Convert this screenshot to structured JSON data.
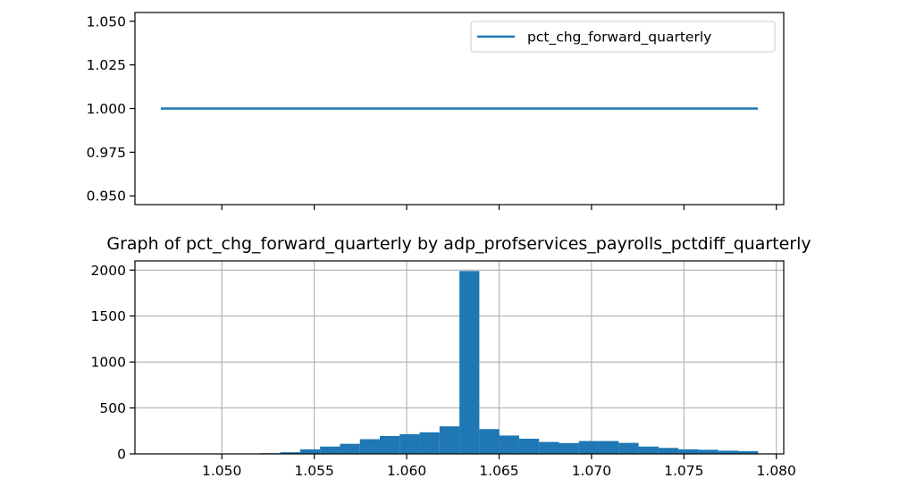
{
  "chart_data": [
    {
      "type": "line",
      "title": "",
      "xlabel": "",
      "ylabel": "",
      "x": [
        1.0467,
        1.079
      ],
      "series": [
        {
          "name": "pct_chg_forward_quarterly",
          "values": [
            1.0,
            1.0
          ]
        }
      ],
      "xlim": [
        1.0453,
        1.0804
      ],
      "ylim": [
        0.945,
        1.055
      ],
      "yticks": [
        0.95,
        0.975,
        1.0,
        1.025,
        1.05
      ],
      "ytick_labels": [
        "0.950",
        "0.975",
        "1.000",
        "1.025",
        "1.050"
      ],
      "xticks": [
        1.05,
        1.055,
        1.06,
        1.065,
        1.07,
        1.075,
        1.08
      ],
      "show_xtick_labels": false,
      "grid": false,
      "legend": "top-right",
      "color": "#1f77b4"
    },
    {
      "type": "bar",
      "title": "Graph of pct_chg_forward_quarterly by adp_profservices_payrolls_pctdiff_quarterly",
      "xlabel": "",
      "ylabel": "",
      "bin_start": 1.0467,
      "bin_width": 0.001077,
      "values": [
        2,
        1,
        2,
        3,
        5,
        8,
        18,
        50,
        80,
        110,
        160,
        195,
        215,
        235,
        300,
        1990,
        270,
        200,
        165,
        130,
        118,
        140,
        140,
        120,
        80,
        65,
        50,
        45,
        35,
        30
      ],
      "xlim": [
        1.0453,
        1.0804
      ],
      "ylim": [
        0,
        2100
      ],
      "xticks": [
        1.05,
        1.055,
        1.06,
        1.065,
        1.07,
        1.075,
        1.08
      ],
      "xtick_labels": [
        "1.050",
        "1.055",
        "1.060",
        "1.065",
        "1.070",
        "1.075",
        "1.080"
      ],
      "yticks": [
        0,
        500,
        1000,
        1500,
        2000
      ],
      "ytick_labels": [
        "0",
        "500",
        "1000",
        "1500",
        "2000"
      ],
      "grid": true,
      "color": "#1f77b4"
    }
  ]
}
